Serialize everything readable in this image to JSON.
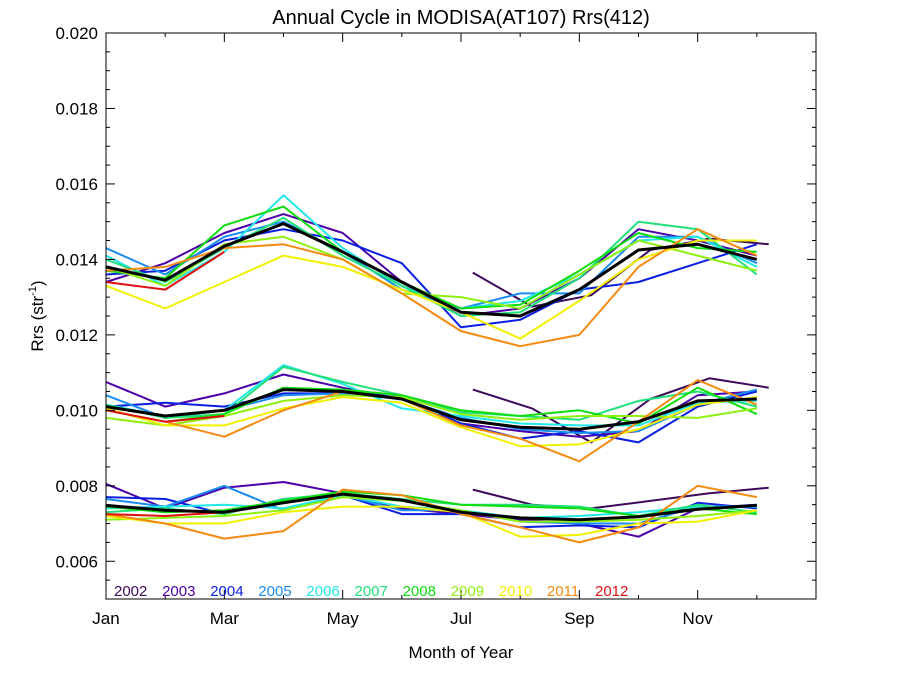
{
  "chart_data": {
    "type": "line",
    "title": "Annual Cycle in MODISA(AT107) Rrs(412)",
    "xlabel": "Month of Year",
    "ylabel_main": "Rrs (str",
    "ylabel_sup": "-1",
    "ylabel_end": ")",
    "xlim": [
      0,
      12
    ],
    "ylim": [
      0.005,
      0.02
    ],
    "x_ticks": [
      {
        "x": 0,
        "label": "Jan"
      },
      {
        "x": 2,
        "label": "Mar"
      },
      {
        "x": 4,
        "label": "May"
      },
      {
        "x": 6,
        "label": "Jul"
      },
      {
        "x": 8,
        "label": "Sep"
      },
      {
        "x": 10,
        "label": "Nov"
      }
    ],
    "y_ticks": [
      {
        "y": 0.006,
        "label": "0.006"
      },
      {
        "y": 0.008,
        "label": "0.008"
      },
      {
        "y": 0.01,
        "label": "0.010"
      },
      {
        "y": 0.012,
        "label": "0.012"
      },
      {
        "y": 0.014,
        "label": "0.014"
      },
      {
        "y": 0.016,
        "label": "0.016"
      },
      {
        "y": 0.018,
        "label": "0.018"
      },
      {
        "y": 0.02,
        "label": "0.020"
      }
    ],
    "legend_position": "bottom-left",
    "mean_color": "#000000",
    "mean": {
      "upper": [
        0.0138,
        0.01345,
        0.01435,
        0.01495,
        0.0142,
        0.0134,
        0.0126,
        0.0125,
        0.0132,
        0.01425,
        0.0144,
        0.014
      ],
      "middle": [
        0.0101,
        0.00985,
        0.01,
        0.01055,
        0.0105,
        0.0103,
        0.00975,
        0.00955,
        0.0095,
        0.0097,
        0.01025,
        0.0103
      ],
      "lower": [
        0.00748,
        0.00735,
        0.0073,
        0.00755,
        0.00778,
        0.00762,
        0.0073,
        0.00715,
        0.0071,
        0.00718,
        0.00738,
        0.00748
      ]
    },
    "series": [
      {
        "name": "2002",
        "color": "#3d0a5c",
        "x_start": 6.2,
        "upper": [
          0.01365,
          0.01275,
          0.01305,
          0.01425,
          0.01455,
          0.0144
        ],
        "middle": [
          0.01055,
          0.01005,
          0.00915,
          0.0103,
          0.01085,
          0.0106
        ],
        "lower": [
          0.0079,
          0.0075,
          0.0074,
          0.0076,
          0.0078,
          0.00795
        ]
      },
      {
        "name": "2003",
        "color": "#4b00a8",
        "x_start": 0,
        "upper": [
          0.0134,
          0.0139,
          0.0147,
          0.0152,
          0.0147,
          0.0134,
          0.0125,
          0.0127,
          0.0135,
          0.0148,
          0.0145,
          0.0141
        ],
        "middle": [
          0.01075,
          0.0101,
          0.01045,
          0.01095,
          0.0106,
          0.0103,
          0.00965,
          0.00945,
          0.0093,
          0.00945,
          0.0104,
          0.0105
        ],
        "lower": [
          0.00805,
          0.0074,
          0.00795,
          0.0081,
          0.0078,
          0.0074,
          0.00725,
          0.0071,
          0.007,
          0.00665,
          0.0074,
          0.0075
        ]
      },
      {
        "name": "2004",
        "color": "#0b1fe0",
        "x_start": 0,
        "upper": [
          0.0136,
          0.0137,
          0.0145,
          0.0148,
          0.0145,
          0.0139,
          0.0122,
          0.0124,
          0.0132,
          0.0134,
          0.0139,
          0.0144
        ],
        "middle": [
          0.0101,
          0.0102,
          0.0101,
          0.01045,
          0.01045,
          0.01035,
          0.00965,
          0.00925,
          0.00945,
          0.00915,
          0.0101,
          0.0105
        ],
        "lower": [
          0.0077,
          0.00765,
          0.00725,
          0.00765,
          0.00775,
          0.00725,
          0.00725,
          0.0069,
          0.00695,
          0.0069,
          0.00755,
          0.0074
        ]
      },
      {
        "name": "2005",
        "color": "#1a8cf0",
        "x_start": 0,
        "upper": [
          0.0143,
          0.0136,
          0.0146,
          0.015,
          0.0142,
          0.0132,
          0.0127,
          0.0131,
          0.0131,
          0.0146,
          0.0146,
          0.0139
        ],
        "middle": [
          0.0104,
          0.0098,
          0.01,
          0.0104,
          0.01045,
          0.0103,
          0.0098,
          0.0095,
          0.0094,
          0.00945,
          0.01015,
          0.01055
        ],
        "lower": [
          0.00765,
          0.00745,
          0.008,
          0.00735,
          0.00775,
          0.00735,
          0.00735,
          0.00705,
          0.007,
          0.007,
          0.00745,
          0.00745
        ]
      },
      {
        "name": "2006",
        "color": "#22e8e8",
        "x_start": 0,
        "upper": [
          0.0141,
          0.0133,
          0.0142,
          0.0157,
          0.0143,
          0.0133,
          0.0127,
          0.0129,
          0.0136,
          0.0145,
          0.0146,
          0.0138
        ],
        "middle": [
          0.01015,
          0.00985,
          0.01,
          0.0112,
          0.0107,
          0.01005,
          0.00985,
          0.00965,
          0.0096,
          0.0096,
          0.0102,
          0.01025
        ],
        "lower": [
          0.0074,
          0.00745,
          0.0075,
          0.0074,
          0.00775,
          0.00745,
          0.00735,
          0.00715,
          0.0072,
          0.0073,
          0.00745,
          0.00745
        ]
      },
      {
        "name": "2007",
        "color": "#22e07a",
        "x_start": 0,
        "upper": [
          0.014,
          0.0134,
          0.0143,
          0.0151,
          0.0141,
          0.0133,
          0.0125,
          0.0126,
          0.0135,
          0.015,
          0.0148,
          0.0136
        ],
        "middle": [
          0.01015,
          0.0098,
          0.0099,
          0.01115,
          0.01075,
          0.0104,
          0.00995,
          0.00985,
          0.00975,
          0.01025,
          0.0105,
          0.0101
        ],
        "lower": [
          0.0073,
          0.0074,
          0.00725,
          0.00765,
          0.0078,
          0.00765,
          0.0075,
          0.0075,
          0.00745,
          0.0072,
          0.0075,
          0.0073
        ]
      },
      {
        "name": "2008",
        "color": "#10dd10",
        "x_start": 0,
        "upper": [
          0.0137,
          0.0135,
          0.0149,
          0.0154,
          0.0142,
          0.0134,
          0.0127,
          0.0128,
          0.0137,
          0.0147,
          0.0143,
          0.0142
        ],
        "middle": [
          0.01,
          0.0097,
          0.0099,
          0.0106,
          0.01055,
          0.0104,
          0.01,
          0.00985,
          0.01,
          0.00965,
          0.0106,
          0.0099
        ],
        "lower": [
          0.00745,
          0.0073,
          0.00735,
          0.0076,
          0.00785,
          0.00775,
          0.0075,
          0.00745,
          0.0074,
          0.0072,
          0.0074,
          0.00725
        ]
      },
      {
        "name": "2009",
        "color": "#8ff010",
        "x_start": 0,
        "upper": [
          0.0138,
          0.0133,
          0.0144,
          0.0146,
          0.014,
          0.0131,
          0.013,
          0.0127,
          0.0136,
          0.0145,
          0.0141,
          0.0137
        ],
        "middle": [
          0.0098,
          0.0096,
          0.00985,
          0.01025,
          0.0104,
          0.01035,
          0.0099,
          0.00975,
          0.00985,
          0.00985,
          0.0098,
          0.01005
        ],
        "lower": [
          0.0071,
          0.00715,
          0.0072,
          0.00735,
          0.0077,
          0.0076,
          0.00735,
          0.00705,
          0.00705,
          0.0071,
          0.0072,
          0.00735
        ]
      },
      {
        "name": "2010",
        "color": "#f2f000",
        "x_start": 0,
        "upper": [
          0.0133,
          0.0127,
          0.0134,
          0.0141,
          0.0138,
          0.0132,
          0.0126,
          0.0119,
          0.0129,
          0.014,
          0.0145,
          0.0145
        ],
        "middle": [
          0.01005,
          0.0096,
          0.0096,
          0.01005,
          0.01035,
          0.0102,
          0.00955,
          0.00905,
          0.0091,
          0.0095,
          0.01015,
          0.01035
        ],
        "lower": [
          0.0072,
          0.007,
          0.007,
          0.0073,
          0.00745,
          0.00745,
          0.0073,
          0.00665,
          0.0067,
          0.007,
          0.00705,
          0.00735
        ]
      },
      {
        "name": "2011",
        "color": "#f58a10",
        "x_start": 0,
        "upper": [
          0.0137,
          0.0138,
          0.0143,
          0.0144,
          0.014,
          0.0131,
          0.0121,
          0.0117,
          0.012,
          0.0138,
          0.0148,
          0.0141
        ],
        "middle": [
          0.01,
          0.0097,
          0.0093,
          0.01,
          0.0105,
          0.0103,
          0.0096,
          0.00925,
          0.00865,
          0.0097,
          0.0108,
          0.01015
        ],
        "lower": [
          0.00725,
          0.007,
          0.0066,
          0.0068,
          0.0079,
          0.00775,
          0.00725,
          0.0069,
          0.0065,
          0.0069,
          0.008,
          0.0077
        ]
      },
      {
        "name": "2012",
        "color": "#e01010",
        "x_start": 0,
        "upper": [
          0.0134,
          0.0132,
          0.0142
        ],
        "middle": [
          0.01,
          0.0097,
          0.00985
        ],
        "lower": [
          0.00725,
          0.0072,
          0.0073
        ]
      }
    ]
  }
}
